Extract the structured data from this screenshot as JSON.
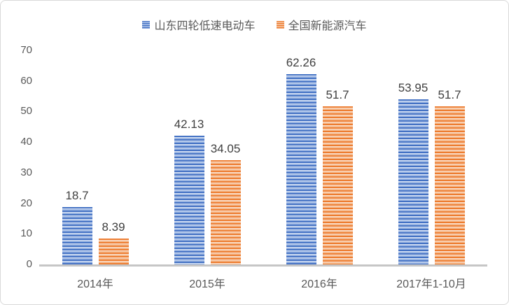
{
  "chart_data": {
    "type": "bar",
    "title": "",
    "xlabel": "",
    "ylabel": "",
    "categories": [
      "2014年",
      "2015年",
      "2016年",
      "2017年1-10月"
    ],
    "series": [
      {
        "name": "山东四轮低速电动车",
        "color": "#4472C4",
        "color_light": "#dfe8f7",
        "color_mid": "#9db7e3",
        "values": [
          18.7,
          42.13,
          62.26,
          53.95
        ],
        "labels": [
          "18.7",
          "42.13",
          "62.26",
          "53.95"
        ]
      },
      {
        "name": "全国新能源汽车",
        "color": "#ED7D31",
        "color_light": "#fce5d6",
        "color_mid": "#f5bd93",
        "values": [
          8.39,
          34.05,
          51.7,
          51.7
        ],
        "labels": [
          "8.39",
          "34.05",
          "51.7",
          "51.7"
        ]
      }
    ],
    "ylim": [
      0,
      70
    ],
    "yticks": [
      0,
      10,
      20,
      30,
      40,
      50,
      60,
      70
    ],
    "grid": false,
    "legend_position": "top",
    "bar_pattern": "horizontal-stripes",
    "axis_line_color": "#c6c6c6",
    "text_color": "#595959",
    "label_color": "#404040",
    "border_color": "#d9d9d9"
  }
}
